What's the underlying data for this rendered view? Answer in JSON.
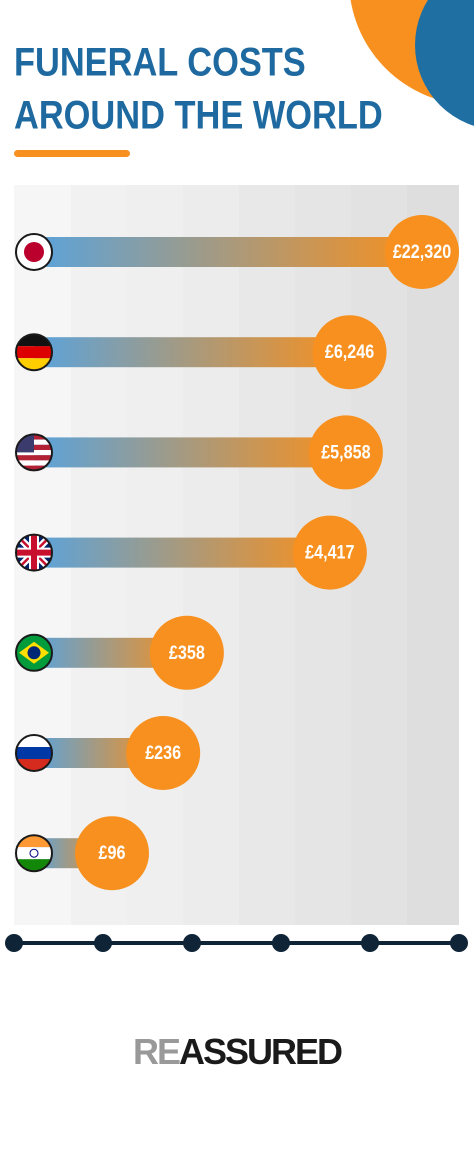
{
  "chart_data": {
    "type": "bar",
    "orientation": "horizontal",
    "log_scale": true,
    "title_lines": [
      "FUNERAL COSTS",
      "AROUND THE WORLD"
    ],
    "values": [
      22320,
      6246,
      5858,
      4417,
      358,
      236,
      96
    ],
    "value_labels": [
      "£22,320",
      "£6,246",
      "£5,858",
      "£4,417",
      "£358",
      "£236",
      "£96"
    ],
    "color": "#f7901e",
    "bar_start_color": "#5aa3dc"
  },
  "logo": [
    "RE",
    "ASSURED"
  ]
}
